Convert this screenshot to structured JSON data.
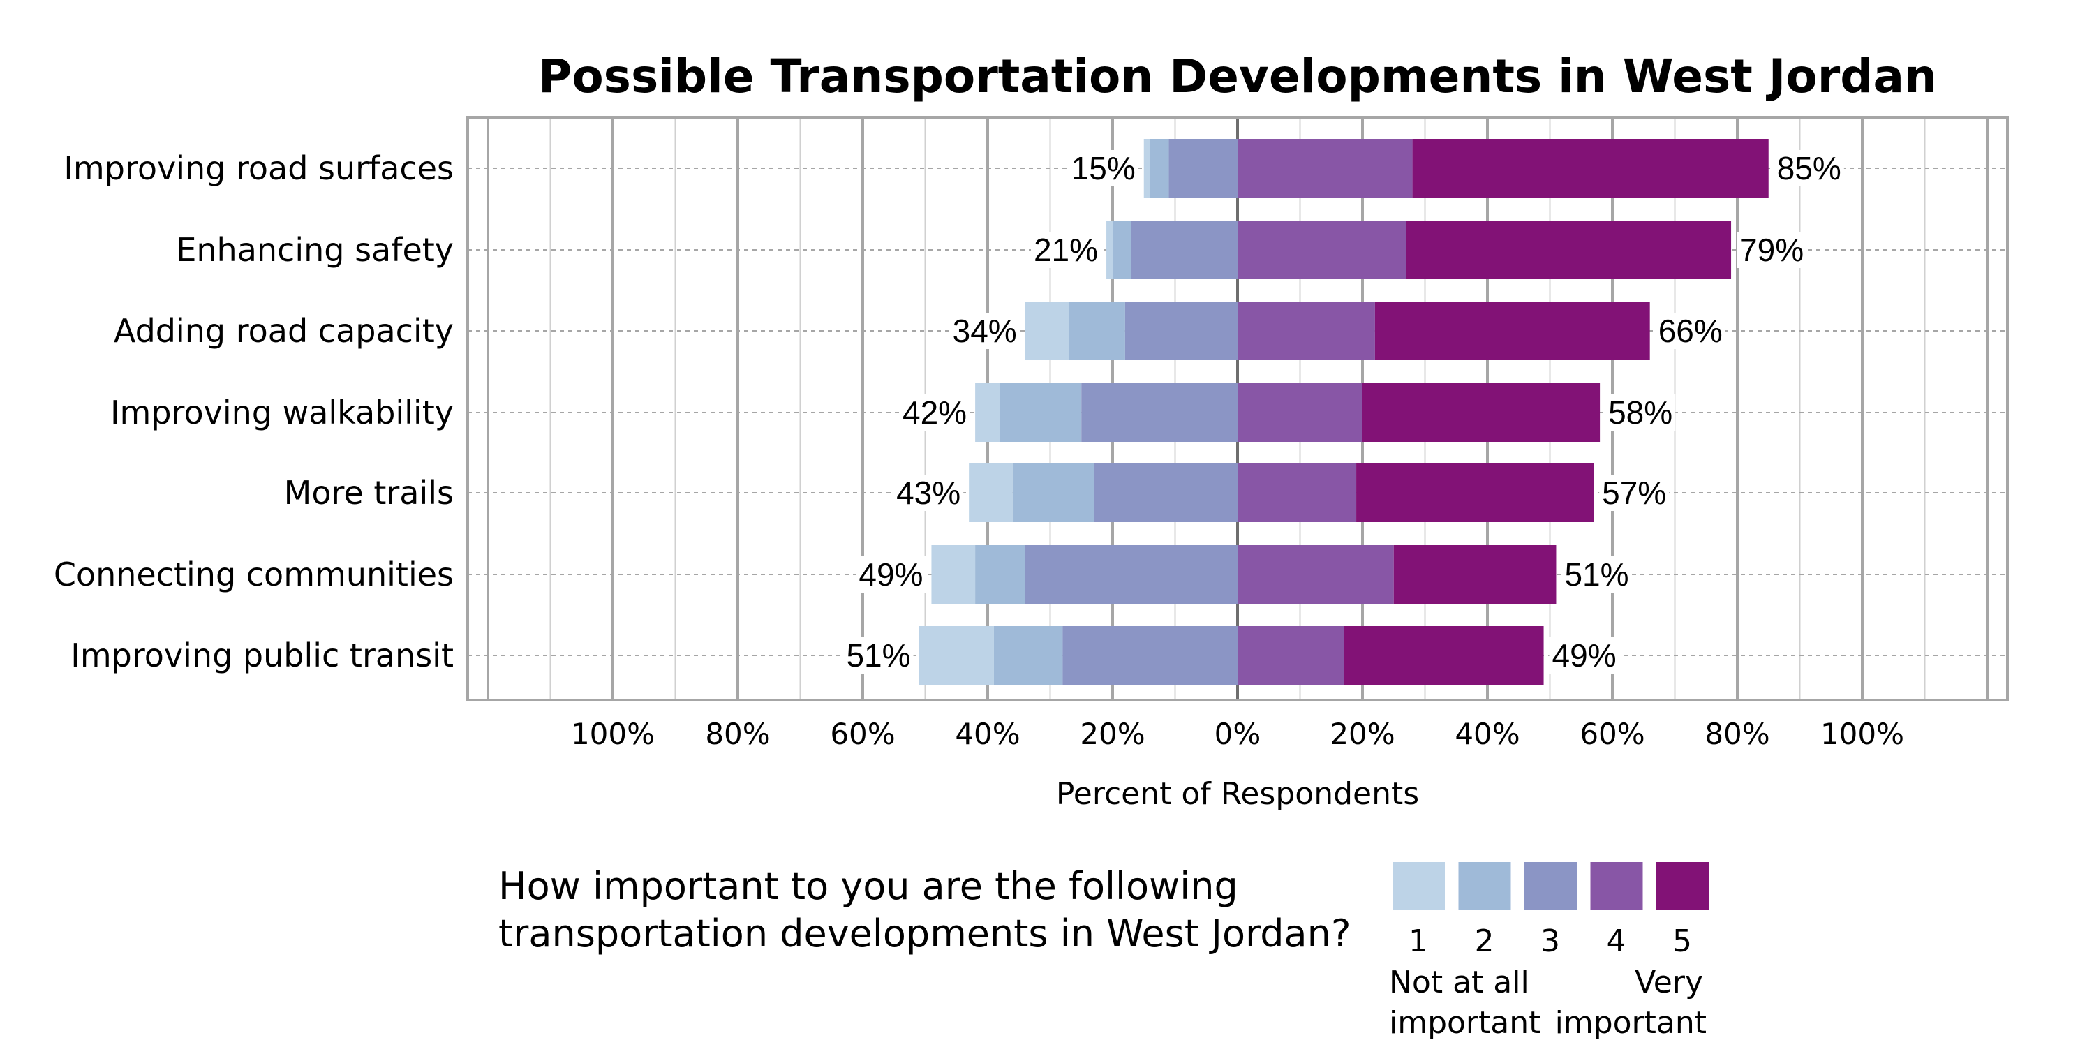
{
  "chart_data": {
    "type": "bar",
    "orientation": "horizontal",
    "stacking": "diverging",
    "title": "Possible Transportation Developments in West Jordan",
    "xlabel": "Percent of Respondents",
    "ylabel": "",
    "xlim": [
      -100,
      100
    ],
    "xticks": [
      "100%",
      "80%",
      "60%",
      "40%",
      "20%",
      "0%",
      "20%",
      "40%",
      "60%",
      "80%",
      "100%"
    ],
    "grid": true,
    "categories": [
      "Improving road surfaces",
      "Enhancing safety",
      "Adding road capacity",
      "Improving walkability",
      "More trails",
      "Connecting communities",
      "Improving public transit"
    ],
    "series": [
      {
        "name": "1",
        "side": "negative",
        "color": "#bdd3e7",
        "values": [
          1,
          1,
          7,
          4,
          7,
          7,
          12
        ]
      },
      {
        "name": "2",
        "side": "negative",
        "color": "#9fbad8",
        "values": [
          3,
          3,
          9,
          13,
          13,
          8,
          11
        ]
      },
      {
        "name": "3",
        "side": "negative",
        "color": "#8b95c5",
        "values": [
          11,
          17,
          18,
          25,
          23,
          34,
          28
        ]
      },
      {
        "name": "4",
        "side": "positive",
        "color": "#8856a6",
        "values": [
          28,
          27,
          22,
          20,
          19,
          25,
          17
        ]
      },
      {
        "name": "5",
        "side": "positive",
        "color": "#821276",
        "values": [
          57,
          52,
          44,
          38,
          38,
          26,
          32
        ]
      }
    ],
    "left_totals": [
      "15%",
      "21%",
      "34%",
      "42%",
      "43%",
      "49%",
      "51%"
    ],
    "right_totals": [
      "85%",
      "79%",
      "66%",
      "58%",
      "57%",
      "51%",
      "49%"
    ],
    "legend": {
      "question_lines": [
        "How important to you are the following",
        "transportation developments in West Jordan?"
      ],
      "low_anchor": [
        "Not at all",
        "important"
      ],
      "high_anchor": [
        "Very",
        "important"
      ],
      "placement": "bottom"
    }
  }
}
